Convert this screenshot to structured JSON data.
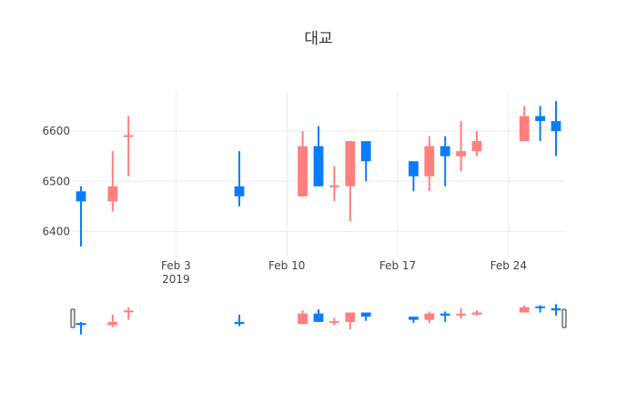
{
  "chart_data": {
    "type": "candlestick",
    "title": "대교",
    "x_tick_labels": [
      {
        "date": "2019-02-03",
        "label": "Feb 3",
        "sublabel": "2019"
      },
      {
        "date": "2019-02-10",
        "label": "Feb 10",
        "sublabel": ""
      },
      {
        "date": "2019-02-17",
        "label": "Feb 17",
        "sublabel": ""
      },
      {
        "date": "2019-02-24",
        "label": "Feb 24",
        "sublabel": ""
      }
    ],
    "y_ticks": [
      6400,
      6500,
      6600
    ],
    "ylim": [
      6350,
      6680
    ],
    "xlim": [
      "2019-01-28",
      "2019-02-27"
    ],
    "grid": true,
    "increasing_color": "#ff7f7f",
    "decreasing_color": "#0a7cff",
    "rangeslider": true,
    "candles": [
      {
        "date": "2019-01-28",
        "open": 6480,
        "high": 6490,
        "low": 6370,
        "close": 6460
      },
      {
        "date": "2019-01-30",
        "open": 6460,
        "high": 6560,
        "low": 6440,
        "close": 6490
      },
      {
        "date": "2019-01-31",
        "open": 6590,
        "high": 6630,
        "low": 6510,
        "close": 6590
      },
      {
        "date": "2019-02-07",
        "open": 6490,
        "high": 6560,
        "low": 6450,
        "close": 6470
      },
      {
        "date": "2019-02-11",
        "open": 6470,
        "high": 6600,
        "low": 6470,
        "close": 6570
      },
      {
        "date": "2019-02-12",
        "open": 6570,
        "high": 6610,
        "low": 6490,
        "close": 6490
      },
      {
        "date": "2019-02-13",
        "open": 6490,
        "high": 6530,
        "low": 6460,
        "close": 6490
      },
      {
        "date": "2019-02-14",
        "open": 6490,
        "high": 6580,
        "low": 6420,
        "close": 6580
      },
      {
        "date": "2019-02-15",
        "open": 6580,
        "high": 6580,
        "low": 6500,
        "close": 6540
      },
      {
        "date": "2019-02-18",
        "open": 6540,
        "high": 6540,
        "low": 6480,
        "close": 6510
      },
      {
        "date": "2019-02-19",
        "open": 6510,
        "high": 6590,
        "low": 6480,
        "close": 6570
      },
      {
        "date": "2019-02-20",
        "open": 6570,
        "high": 6590,
        "low": 6490,
        "close": 6550
      },
      {
        "date": "2019-02-21",
        "open": 6550,
        "high": 6620,
        "low": 6520,
        "close": 6560
      },
      {
        "date": "2019-02-22",
        "open": 6560,
        "high": 6600,
        "low": 6550,
        "close": 6580
      },
      {
        "date": "2019-02-25",
        "open": 6580,
        "high": 6650,
        "low": 6580,
        "close": 6630
      },
      {
        "date": "2019-02-26",
        "open": 6630,
        "high": 6650,
        "low": 6580,
        "close": 6620
      },
      {
        "date": "2019-02-27",
        "open": 6620,
        "high": 6660,
        "low": 6550,
        "close": 6600
      }
    ]
  }
}
